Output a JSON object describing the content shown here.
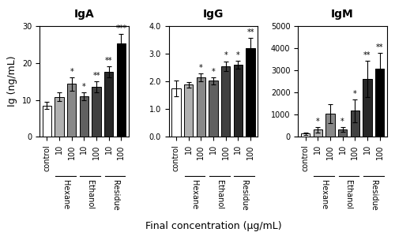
{
  "chart_data": [
    {
      "type": "bar",
      "title": "IgA",
      "ylabel": "Ig (ng/mL)",
      "categories": [
        "control",
        "10",
        "100",
        "10",
        "100",
        "10",
        "100"
      ],
      "values": [
        8.5,
        10.8,
        14.3,
        11.0,
        13.5,
        17.5,
        25.3
      ],
      "errors": [
        1.0,
        1.2,
        1.8,
        1.0,
        1.5,
        1.5,
        2.5
      ],
      "colors": [
        "#ffffff",
        "#b0b0b0",
        "#888888",
        "#606060",
        "#404040",
        "#282828",
        "#000000"
      ],
      "ylim": [
        0,
        30
      ],
      "yticks": [
        0,
        10,
        20,
        30
      ],
      "annotations": [
        {
          "text": "*",
          "index": 2
        },
        {
          "text": "*",
          "index": 3
        },
        {
          "text": "**",
          "index": 4
        },
        {
          "text": "**",
          "index": 5
        },
        {
          "text": "***",
          "index": 6
        }
      ],
      "groups": [
        {
          "name": "Hexane",
          "start": 1,
          "end": 2
        },
        {
          "name": "Ethanol",
          "start": 3,
          "end": 4
        },
        {
          "name": "Residue",
          "start": 5,
          "end": 6
        }
      ]
    },
    {
      "type": "bar",
      "title": "IgG",
      "xlabel": "Final concentration (μg/mL)",
      "categories": [
        "control",
        "10",
        "100",
        "10",
        "100",
        "10",
        "100"
      ],
      "values": [
        1.75,
        1.88,
        2.15,
        2.02,
        2.55,
        2.6,
        3.2
      ],
      "errors": [
        0.28,
        0.1,
        0.15,
        0.12,
        0.18,
        0.15,
        0.38
      ],
      "colors": [
        "#ffffff",
        "#b0b0b0",
        "#888888",
        "#606060",
        "#404040",
        "#282828",
        "#000000"
      ],
      "ylim": [
        0,
        4
      ],
      "yticks": [
        {
          "value": 0,
          "label": "0.0"
        },
        {
          "value": 1,
          "label": "1.0"
        },
        {
          "value": 2,
          "label": "2.0"
        },
        {
          "value": 3,
          "label": "3.0"
        },
        {
          "value": 4,
          "label": "4.0"
        }
      ],
      "annotations": [
        {
          "text": "*",
          "index": 2
        },
        {
          "text": "*",
          "index": 3
        },
        {
          "text": "*",
          "index": 4
        },
        {
          "text": "*",
          "index": 5
        },
        {
          "text": "**",
          "index": 6
        }
      ],
      "groups": [
        {
          "name": "Hexane",
          "start": 1,
          "end": 2
        },
        {
          "name": "Ethanol",
          "start": 3,
          "end": 4
        },
        {
          "name": "Residue",
          "start": 5,
          "end": 6
        }
      ]
    },
    {
      "type": "bar",
      "title": "IgM",
      "categories": [
        "control",
        "10",
        "100",
        "10",
        "100",
        "10",
        "100"
      ],
      "values": [
        150,
        320,
        1050,
        340,
        1180,
        2600,
        3060
      ],
      "errors": [
        60,
        130,
        420,
        110,
        520,
        820,
        720
      ],
      "colors": [
        "#ffffff",
        "#b0b0b0",
        "#888888",
        "#606060",
        "#404040",
        "#282828",
        "#000000"
      ],
      "ylim": [
        0,
        5000
      ],
      "yticks": [
        0,
        1000,
        2000,
        3000,
        4000,
        5000
      ],
      "annotations": [
        {
          "text": "*",
          "index": 1
        },
        {
          "text": "*",
          "index": 3
        },
        {
          "text": "*",
          "index": 4
        },
        {
          "text": "**",
          "index": 5
        },
        {
          "text": "**",
          "index": 6
        }
      ],
      "groups": [
        {
          "name": "Hexane",
          "start": 1,
          "end": 2
        },
        {
          "name": "Ethanol",
          "start": 3,
          "end": 4
        },
        {
          "name": "Residue",
          "start": 5,
          "end": 6
        }
      ]
    }
  ]
}
